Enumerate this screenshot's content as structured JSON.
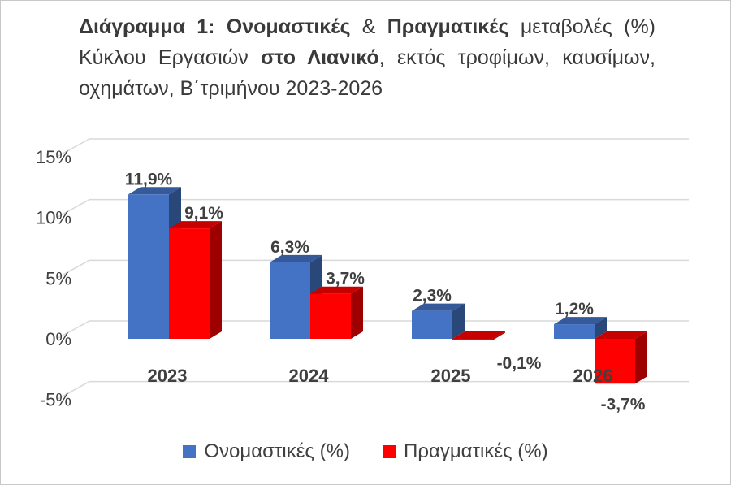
{
  "title": {
    "segments": [
      {
        "text": "Διάγραμμα 1: Ονομαστικές",
        "bold": true
      },
      {
        "text": " & ",
        "bold": false
      },
      {
        "text": "Πραγματικές",
        "bold": true
      },
      {
        "text": " μεταβολές (%) Κύκλου Εργασιών ",
        "bold": false
      },
      {
        "text": "στο Λιανικό",
        "bold": true
      },
      {
        "text": ", εκτός τροφίμων, καυσίμων, οχημάτων, Β΄τριμήνου 2023-2026",
        "bold": false
      }
    ]
  },
  "chart_data": {
    "type": "bar",
    "categories": [
      "2023",
      "2024",
      "2025",
      "2026"
    ],
    "series": [
      {
        "name": "Ονομαστικές (%)",
        "values": [
          11.9,
          6.3,
          2.3,
          1.2
        ],
        "labels": [
          "11,9%",
          "6,3%",
          "2,3%",
          "1,2%"
        ],
        "color": "#4472C4"
      },
      {
        "name": "Πραγματικές (%)",
        "values": [
          9.1,
          3.7,
          -0.1,
          -3.7
        ],
        "labels": [
          "9,1%",
          "3,7%",
          "-0,1%",
          "-3,7%"
        ],
        "color": "#FF0000"
      }
    ],
    "yticks": [
      {
        "value": 15,
        "label": "15%"
      },
      {
        "value": 10,
        "label": "10%"
      },
      {
        "value": 5,
        "label": "5%"
      },
      {
        "value": 0,
        "label": "0%"
      },
      {
        "value": -5,
        "label": "-5%"
      }
    ],
    "ylim": [
      -5,
      15
    ],
    "grid": true,
    "legend": "bottom",
    "style": "3d-clustered-column"
  }
}
